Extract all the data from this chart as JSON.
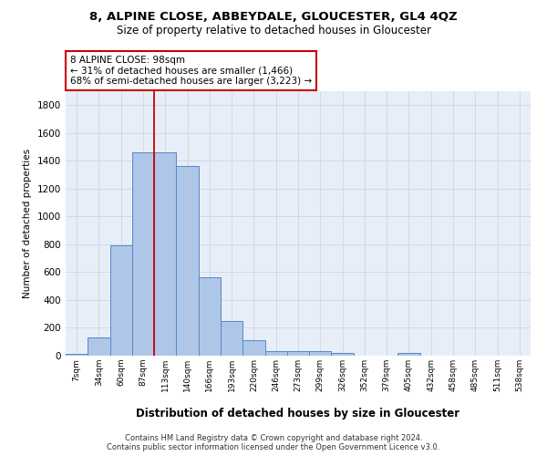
{
  "title1": "8, ALPINE CLOSE, ABBEYDALE, GLOUCESTER, GL4 4QZ",
  "title2": "Size of property relative to detached houses in Gloucester",
  "xlabel": "Distribution of detached houses by size in Gloucester",
  "ylabel": "Number of detached properties",
  "categories": [
    "7sqm",
    "34sqm",
    "60sqm",
    "87sqm",
    "113sqm",
    "140sqm",
    "166sqm",
    "193sqm",
    "220sqm",
    "246sqm",
    "273sqm",
    "299sqm",
    "326sqm",
    "352sqm",
    "379sqm",
    "405sqm",
    "432sqm",
    "458sqm",
    "485sqm",
    "511sqm",
    "538sqm"
  ],
  "values": [
    15,
    130,
    790,
    1460,
    1460,
    1360,
    565,
    250,
    110,
    35,
    30,
    30,
    20,
    0,
    0,
    20,
    0,
    0,
    0,
    0,
    0
  ],
  "bar_color": "#aec6e8",
  "bar_edge_color": "#5589c8",
  "vline_color": "#cc0000",
  "annotation_line1": "8 ALPINE CLOSE: 98sqm",
  "annotation_line2": "← 31% of detached houses are smaller (1,466)",
  "annotation_line3": "68% of semi-detached houses are larger (3,223) →",
  "annotation_box_color": "#ffffff",
  "annotation_box_edge": "#cc0000",
  "ylim": [
    0,
    1900
  ],
  "yticks": [
    0,
    200,
    400,
    600,
    800,
    1000,
    1200,
    1400,
    1600,
    1800
  ],
  "footer1": "Contains HM Land Registry data © Crown copyright and database right 2024.",
  "footer2": "Contains public sector information licensed under the Open Government Licence v3.0.",
  "plot_bg_color": "#e8eef8"
}
